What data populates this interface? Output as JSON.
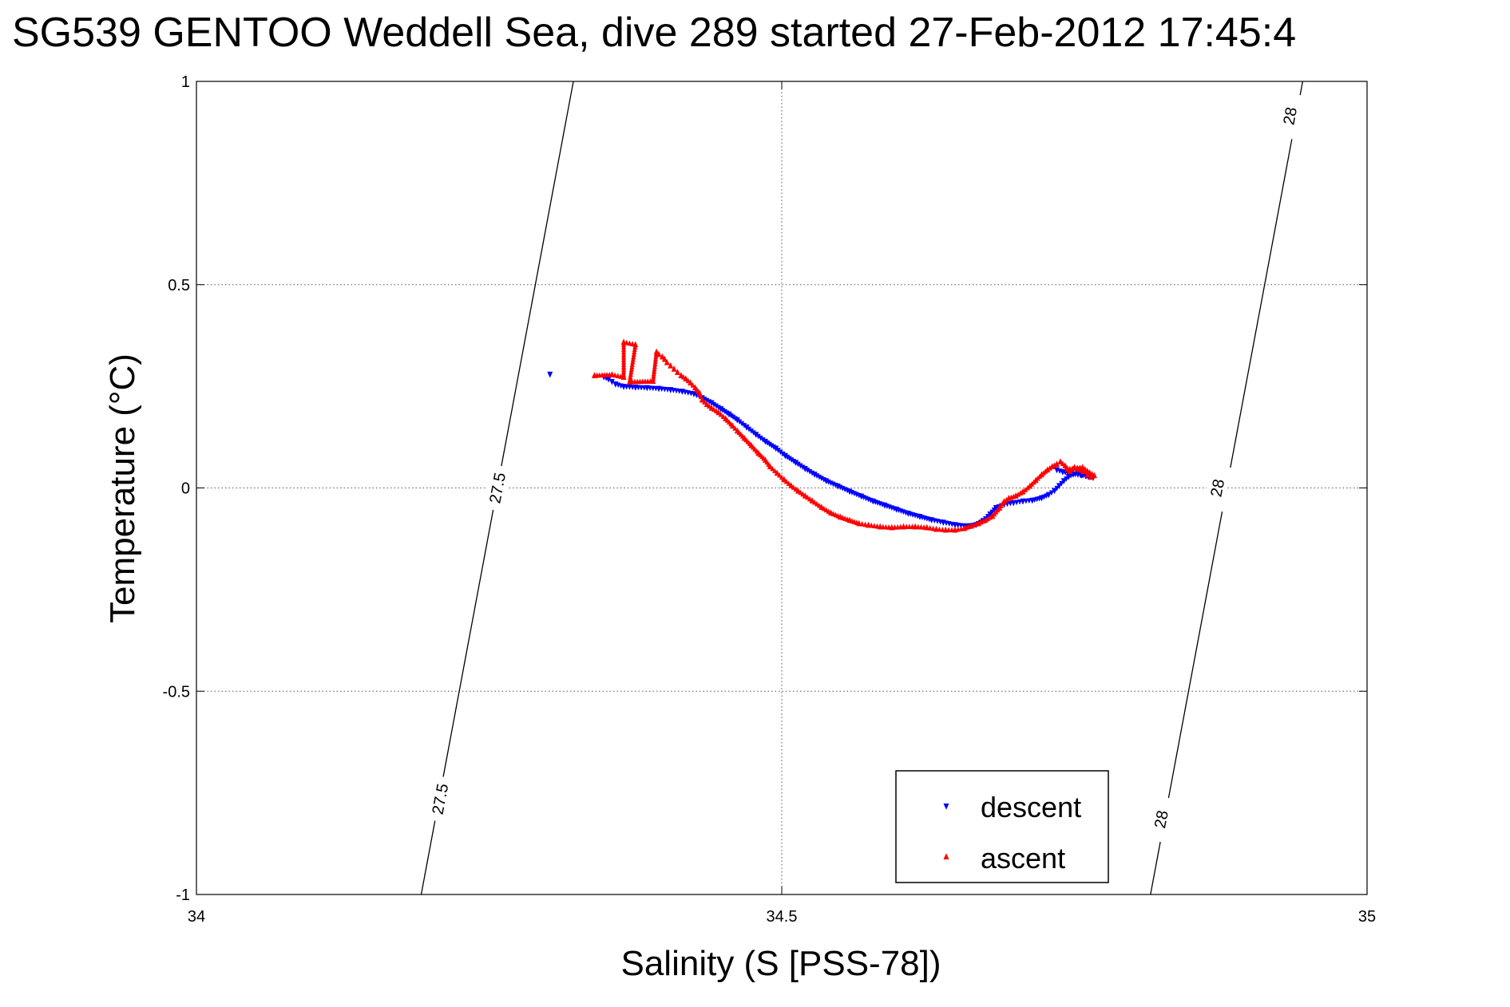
{
  "chart_data": {
    "type": "scatter",
    "title": "SG539 GENTOO Weddell Sea, dive 289 started 27-Feb-2012 17:45:4",
    "xlabel": "Salinity (S [PSS-78])",
    "ylabel": "Temperature (°C)",
    "xlim": [
      34,
      35
    ],
    "ylim": [
      -1,
      1
    ],
    "xticks": [
      34,
      34.5,
      35
    ],
    "xtick_labels": [
      "34",
      "34.5",
      "35"
    ],
    "yticks": [
      -1,
      -0.5,
      0,
      0.5,
      1
    ],
    "ytick_labels": [
      "-1",
      "-0.5",
      "0",
      "0.5",
      "1"
    ],
    "grid": true,
    "legend": {
      "position": "bottom-right",
      "entries": [
        "descent",
        "ascent"
      ]
    },
    "series": [
      {
        "name": "descent",
        "color": "#0000ff",
        "marker": "triangle-down",
        "points": [
          [
            34.302,
            0.28
          ],
          [
            34.348,
            0.274
          ],
          [
            34.352,
            0.268
          ],
          [
            34.355,
            0.262
          ],
          [
            34.358,
            0.256
          ],
          [
            34.365,
            0.25
          ],
          [
            34.375,
            0.248
          ],
          [
            34.385,
            0.247
          ],
          [
            34.395,
            0.245
          ],
          [
            34.405,
            0.242
          ],
          [
            34.415,
            0.238
          ],
          [
            34.425,
            0.232
          ],
          [
            34.432,
            0.222
          ],
          [
            34.44,
            0.21
          ],
          [
            34.448,
            0.195
          ],
          [
            34.455,
            0.182
          ],
          [
            34.462,
            0.168
          ],
          [
            34.47,
            0.15
          ],
          [
            34.478,
            0.132
          ],
          [
            34.486,
            0.115
          ],
          [
            34.495,
            0.098
          ],
          [
            34.503,
            0.08
          ],
          [
            34.512,
            0.063
          ],
          [
            34.52,
            0.048
          ],
          [
            34.528,
            0.034
          ],
          [
            34.538,
            0.018
          ],
          [
            34.548,
            0.005
          ],
          [
            34.558,
            -0.008
          ],
          [
            34.568,
            -0.02
          ],
          [
            34.578,
            -0.032
          ],
          [
            34.588,
            -0.042
          ],
          [
            34.598,
            -0.052
          ],
          [
            34.608,
            -0.062
          ],
          [
            34.618,
            -0.07
          ],
          [
            34.628,
            -0.078
          ],
          [
            34.638,
            -0.084
          ],
          [
            34.648,
            -0.09
          ],
          [
            34.658,
            -0.093
          ],
          [
            34.666,
            -0.09
          ],
          [
            34.672,
            -0.08
          ],
          [
            34.678,
            -0.064
          ],
          [
            34.683,
            -0.048
          ],
          [
            34.69,
            -0.04
          ],
          [
            34.698,
            -0.036
          ],
          [
            34.706,
            -0.032
          ],
          [
            34.714,
            -0.03
          ],
          [
            34.722,
            -0.024
          ],
          [
            34.728,
            -0.016
          ],
          [
            34.733,
            -0.006
          ],
          [
            34.737,
            0.006
          ],
          [
            34.741,
            0.018
          ],
          [
            34.745,
            0.028
          ],
          [
            34.749,
            0.034
          ],
          [
            34.753,
            0.036
          ],
          [
            34.756,
            0.032
          ],
          [
            34.76,
            0.03
          ],
          [
            34.763,
            0.028
          ],
          [
            34.766,
            0.026
          ],
          [
            34.74,
            0.04
          ],
          [
            34.735,
            0.045
          ]
        ]
      },
      {
        "name": "ascent",
        "color": "#ff0000",
        "marker": "triangle-up",
        "points": [
          [
            34.34,
            0.276
          ],
          [
            34.355,
            0.278
          ],
          [
            34.365,
            0.272
          ],
          [
            34.365,
            0.358
          ],
          [
            34.375,
            0.352
          ],
          [
            34.37,
            0.26
          ],
          [
            34.39,
            0.262
          ],
          [
            34.393,
            0.334
          ],
          [
            34.395,
            0.328
          ],
          [
            34.398,
            0.322
          ],
          [
            34.4,
            0.316
          ],
          [
            34.402,
            0.308
          ],
          [
            34.405,
            0.3
          ],
          [
            34.408,
            0.292
          ],
          [
            34.411,
            0.284
          ],
          [
            34.414,
            0.276
          ],
          [
            34.418,
            0.268
          ],
          [
            34.422,
            0.258
          ],
          [
            34.426,
            0.246
          ],
          [
            34.43,
            0.232
          ],
          [
            34.432,
            0.216
          ],
          [
            34.436,
            0.205
          ],
          [
            34.44,
            0.196
          ],
          [
            34.446,
            0.185
          ],
          [
            34.452,
            0.17
          ],
          [
            34.458,
            0.152
          ],
          [
            34.462,
            0.14
          ],
          [
            34.468,
            0.122
          ],
          [
            34.474,
            0.104
          ],
          [
            34.48,
            0.085
          ],
          [
            34.486,
            0.068
          ],
          [
            34.49,
            0.052
          ],
          [
            34.496,
            0.036
          ],
          [
            34.502,
            0.02
          ],
          [
            34.508,
            0.005
          ],
          [
            34.514,
            -0.008
          ],
          [
            34.52,
            -0.02
          ],
          [
            34.526,
            -0.032
          ],
          [
            34.534,
            -0.048
          ],
          [
            34.542,
            -0.062
          ],
          [
            34.55,
            -0.072
          ],
          [
            34.558,
            -0.08
          ],
          [
            34.566,
            -0.088
          ],
          [
            34.574,
            -0.092
          ],
          [
            34.584,
            -0.096
          ],
          [
            34.594,
            -0.098
          ],
          [
            34.604,
            -0.096
          ],
          [
            34.614,
            -0.096
          ],
          [
            34.624,
            -0.098
          ],
          [
            34.632,
            -0.102
          ],
          [
            34.64,
            -0.104
          ],
          [
            34.648,
            -0.104
          ],
          [
            34.656,
            -0.1
          ],
          [
            34.662,
            -0.094
          ],
          [
            34.668,
            -0.088
          ],
          [
            34.674,
            -0.08
          ],
          [
            34.68,
            -0.07
          ],
          [
            34.686,
            -0.05
          ],
          [
            34.69,
            -0.034
          ],
          [
            34.694,
            -0.026
          ],
          [
            34.7,
            -0.02
          ],
          [
            34.706,
            -0.01
          ],
          [
            34.712,
            0.004
          ],
          [
            34.717,
            0.018
          ],
          [
            34.722,
            0.032
          ],
          [
            34.727,
            0.044
          ],
          [
            34.731,
            0.052
          ],
          [
            34.735,
            0.058
          ],
          [
            34.738,
            0.064
          ],
          [
            34.742,
            0.054
          ],
          [
            34.746,
            0.04
          ],
          [
            34.75,
            0.05
          ],
          [
            34.754,
            0.045
          ],
          [
            34.758,
            0.04
          ],
          [
            34.761,
            0.032
          ],
          [
            34.764,
            0.026
          ],
          [
            34.767,
            0.03
          ],
          [
            34.757,
            0.05
          ],
          [
            34.744,
            0.046
          ]
        ]
      }
    ],
    "density_contours": [
      {
        "label": "27.5",
        "path": [
          [
            34.192,
            -1.0
          ],
          [
            34.322,
            1.0
          ]
        ],
        "labels_at": [
          [
            34.208,
            -0.765
          ],
          [
            34.257,
            0.0
          ]
        ]
      },
      {
        "label": "28",
        "path": [
          [
            34.815,
            -1.0
          ],
          [
            34.945,
            1.0
          ]
        ],
        "labels_at": [
          [
            34.824,
            -0.815
          ],
          [
            34.872,
            0.0
          ],
          [
            34.934,
            0.915
          ]
        ]
      }
    ]
  }
}
